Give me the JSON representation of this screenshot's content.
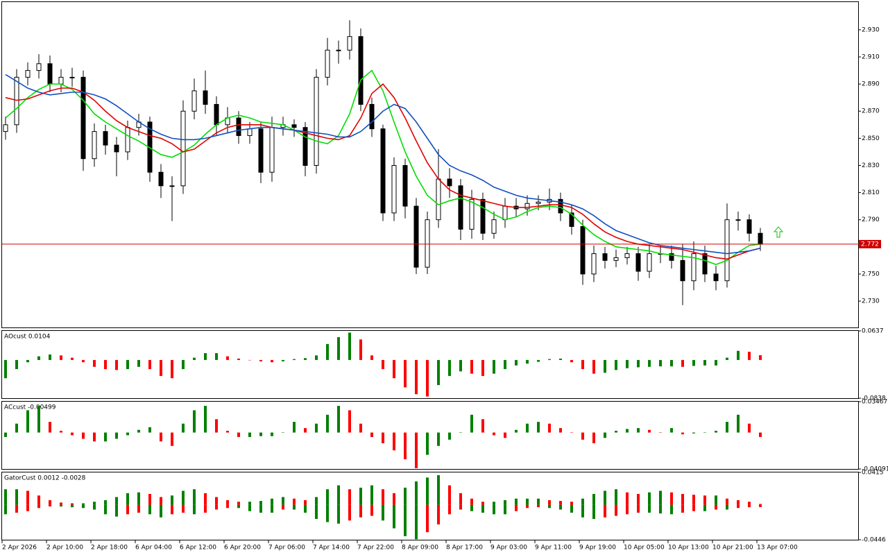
{
  "chart_data": [
    {
      "type": "candlestick",
      "open": [
        2.855,
        2.86,
        2.895,
        2.9,
        2.905,
        2.89,
        2.895,
        2.895,
        2.835,
        2.855,
        2.845,
        2.84,
        2.858,
        2.862,
        2.825,
        2.815,
        2.815,
        2.87,
        2.885,
        2.875,
        2.86,
        2.865,
        2.852,
        2.857,
        2.825,
        2.858,
        2.86,
        2.858,
        2.83,
        2.895,
        2.915,
        2.915,
        2.925,
        2.875,
        2.857,
        2.795,
        2.83,
        2.8,
        2.755,
        2.79,
        2.82,
        2.815,
        2.783,
        2.805,
        2.78,
        2.79,
        2.8,
        2.798,
        2.802,
        2.803,
        2.805,
        2.795,
        2.785,
        2.75,
        2.765,
        2.76,
        2.762,
        2.765,
        2.752,
        2.765,
        2.765,
        2.76,
        2.745,
        2.765,
        2.75,
        2.745,
        2.79,
        2.79,
        2.78
      ],
      "high": [
        2.866,
        2.901,
        2.906,
        2.912,
        2.911,
        2.901,
        2.902,
        2.9,
        2.861,
        2.86,
        2.851,
        2.863,
        2.868,
        2.866,
        2.831,
        2.822,
        2.878,
        2.894,
        2.9,
        2.881,
        2.873,
        2.87,
        2.862,
        2.862,
        2.866,
        2.866,
        2.864,
        2.862,
        2.901,
        2.924,
        2.922,
        2.937,
        2.931,
        2.88,
        2.86,
        2.836,
        2.835,
        2.806,
        2.796,
        2.842,
        2.828,
        2.82,
        2.812,
        2.81,
        2.796,
        2.806,
        2.806,
        2.808,
        2.808,
        2.813,
        2.81,
        2.801,
        2.79,
        2.771,
        2.77,
        2.768,
        2.77,
        2.77,
        2.772,
        2.771,
        2.771,
        2.772,
        2.774,
        2.771,
        2.756,
        2.802,
        2.796,
        2.794,
        2.784
      ],
      "low": [
        2.849,
        2.854,
        2.889,
        2.894,
        2.884,
        2.884,
        2.888,
        2.826,
        2.829,
        2.838,
        2.822,
        2.834,
        2.852,
        2.818,
        2.806,
        2.789,
        2.809,
        2.864,
        2.868,
        2.852,
        2.854,
        2.846,
        2.846,
        2.817,
        2.818,
        2.852,
        2.851,
        2.822,
        2.824,
        2.889,
        2.905,
        2.908,
        2.87,
        2.851,
        2.789,
        2.789,
        2.791,
        2.75,
        2.75,
        2.784,
        2.806,
        2.775,
        2.776,
        2.775,
        2.776,
        2.784,
        2.792,
        2.793,
        2.797,
        2.797,
        2.789,
        2.779,
        2.742,
        2.744,
        2.754,
        2.755,
        2.757,
        2.745,
        2.747,
        2.758,
        2.754,
        2.727,
        2.738,
        2.744,
        2.738,
        2.74,
        2.782,
        2.774,
        2.767
      ],
      "close": [
        2.86,
        2.895,
        2.9,
        2.905,
        2.89,
        2.895,
        2.895,
        2.835,
        2.855,
        2.845,
        2.84,
        2.858,
        2.862,
        2.825,
        2.815,
        2.815,
        2.87,
        2.885,
        2.875,
        2.86,
        2.865,
        2.852,
        2.857,
        2.825,
        2.858,
        2.86,
        2.858,
        2.83,
        2.895,
        2.915,
        2.915,
        2.925,
        2.875,
        2.857,
        2.795,
        2.83,
        2.8,
        2.755,
        2.79,
        2.82,
        2.815,
        2.783,
        2.805,
        2.78,
        2.79,
        2.8,
        2.798,
        2.802,
        2.803,
        2.805,
        2.795,
        2.785,
        2.75,
        2.765,
        2.76,
        2.762,
        2.765,
        2.752,
        2.765,
        2.765,
        2.76,
        2.745,
        2.765,
        2.75,
        2.745,
        2.79,
        2.79,
        2.78,
        2.772
      ],
      "up_color": "#ffffff",
      "down_color": "#000000",
      "series": [
        {
          "color": "#00dd00",
          "values": [
            2.865,
            2.872,
            2.88,
            2.886,
            2.89,
            2.89,
            2.886,
            2.878,
            2.868,
            2.862,
            2.857,
            2.852,
            2.848,
            2.843,
            2.838,
            2.836,
            2.84,
            2.845,
            2.853,
            2.86,
            2.865,
            2.867,
            2.865,
            2.862,
            2.861,
            2.86,
            2.856,
            2.851,
            2.848,
            2.846,
            2.852,
            2.868,
            2.893,
            2.9,
            2.885,
            2.862,
            2.84,
            2.822,
            2.808,
            2.801,
            2.804,
            2.806,
            2.803,
            2.799,
            2.794,
            2.79,
            2.792,
            2.796,
            2.799,
            2.8,
            2.799,
            2.794,
            2.786,
            2.779,
            2.774,
            2.77,
            2.769,
            2.768,
            2.767,
            2.765,
            2.764,
            2.763,
            2.762,
            2.76,
            2.757,
            2.76,
            2.766,
            2.771,
            2.772
          ]
        },
        {
          "color": "#e00000",
          "values": [
            2.88,
            2.878,
            2.879,
            2.882,
            2.885,
            2.887,
            2.887,
            2.884,
            2.878,
            2.87,
            2.863,
            2.858,
            2.855,
            2.852,
            2.85,
            2.846,
            2.84,
            2.842,
            2.848,
            2.854,
            2.858,
            2.86,
            2.86,
            2.86,
            2.858,
            2.857,
            2.856,
            2.854,
            2.852,
            2.85,
            2.849,
            2.852,
            2.865,
            2.883,
            2.89,
            2.88,
            2.865,
            2.848,
            2.832,
            2.82,
            2.812,
            2.808,
            2.806,
            2.804,
            2.802,
            2.8,
            2.799,
            2.799,
            2.8,
            2.801,
            2.801,
            2.799,
            2.794,
            2.787,
            2.781,
            2.777,
            2.774,
            2.772,
            2.771,
            2.77,
            2.769,
            2.768,
            2.766,
            2.764,
            2.762,
            2.761,
            2.764,
            2.767,
            2.769
          ]
        },
        {
          "color": "#1050c0",
          "values": [
            2.897,
            2.892,
            2.887,
            2.884,
            2.882,
            2.883,
            2.884,
            2.884,
            2.882,
            2.879,
            2.874,
            2.868,
            2.862,
            2.857,
            2.853,
            2.85,
            2.849,
            2.849,
            2.85,
            2.852,
            2.854,
            2.856,
            2.857,
            2.858,
            2.858,
            2.857,
            2.856,
            2.855,
            2.854,
            2.853,
            2.851,
            2.851,
            2.855,
            2.862,
            2.87,
            2.875,
            2.872,
            2.862,
            2.85,
            2.838,
            2.83,
            2.826,
            2.823,
            2.819,
            2.814,
            2.811,
            2.808,
            2.806,
            2.805,
            2.804,
            2.803,
            2.801,
            2.798,
            2.793,
            2.787,
            2.782,
            2.779,
            2.776,
            2.773,
            2.771,
            2.77,
            2.769,
            2.768,
            2.767,
            2.766,
            2.765,
            2.766,
            2.767,
            2.769
          ]
        }
      ],
      "price_line": 2.772,
      "price_color": "#d00000",
      "ylim": [
        2.7106,
        2.9504
      ],
      "yticks": [
        {
          "value": 2.93,
          "label": "2.930"
        },
        {
          "value": 2.91,
          "label": "2.910"
        },
        {
          "value": 2.89,
          "label": "2.890"
        },
        {
          "value": 2.87,
          "label": "2.870"
        },
        {
          "value": 2.85,
          "label": "2.850"
        },
        {
          "value": 2.83,
          "label": "2.830"
        },
        {
          "value": 2.81,
          "label": "2.810"
        },
        {
          "value": 2.79,
          "label": "2.790"
        },
        {
          "value": 2.75,
          "label": "2.750"
        },
        {
          "value": 2.73,
          "label": "2.730"
        }
      ]
    },
    {
      "type": "bar",
      "title": "AOcust 0.0104",
      "color_by": "change",
      "up_color": "#008000",
      "down_color": "#ff0000",
      "series": [
        {
          "values": [
            -0.04,
            -0.02,
            -0.005,
            0.008,
            0.012,
            0.01,
            0.005,
            -0.005,
            -0.015,
            -0.02,
            -0.022,
            -0.02,
            -0.015,
            -0.02,
            -0.035,
            -0.04,
            -0.02,
            0.005,
            0.015,
            0.015,
            0.008,
            0.003,
            0.0,
            -0.003,
            -0.005,
            -0.003,
            0.002,
            0.004,
            0.01,
            0.035,
            0.05,
            0.06,
            0.045,
            0.01,
            -0.02,
            -0.04,
            -0.06,
            -0.075,
            -0.08,
            -0.055,
            -0.035,
            -0.025,
            -0.03,
            -0.035,
            -0.03,
            -0.02,
            -0.012,
            -0.008,
            -0.004,
            0.002,
            0.003,
            -0.005,
            -0.02,
            -0.03,
            -0.028,
            -0.022,
            -0.018,
            -0.016,
            -0.015,
            -0.014,
            -0.014,
            -0.015,
            -0.013,
            -0.012,
            -0.012,
            0.005,
            0.02,
            0.018,
            0.0104
          ]
        }
      ],
      "ylim": [
        -0.0838,
        0.0637
      ],
      "yticks": [
        0.0637,
        -0.0838
      ]
    },
    {
      "type": "bar",
      "title": "ACcust -0.00499",
      "color_by": "change",
      "up_color": "#008000",
      "down_color": "#ff0000",
      "series": [
        {
          "values": [
            -0.005,
            0.01,
            0.025,
            0.03,
            0.012,
            0.002,
            -0.003,
            -0.007,
            -0.01,
            -0.01,
            -0.007,
            -0.003,
            0.003,
            0.006,
            -0.01,
            -0.015,
            0.01,
            0.025,
            0.03,
            0.015,
            0.002,
            -0.005,
            -0.005,
            -0.004,
            -0.004,
            0.0,
            0.012,
            0.005,
            0.01,
            0.02,
            0.03,
            0.025,
            0.01,
            -0.005,
            -0.012,
            -0.02,
            -0.03,
            -0.04,
            -0.025,
            -0.015,
            -0.008,
            0.0,
            0.02,
            0.015,
            -0.003,
            -0.006,
            0.003,
            0.01,
            0.012,
            0.01,
            0.005,
            0.0,
            -0.008,
            -0.012,
            -0.006,
            0.002,
            0.004,
            0.005,
            0.003,
            0.0,
            0.005,
            -0.002,
            -0.001,
            0.0,
            0.002,
            0.012,
            0.02,
            0.01,
            -0.00499
          ]
        }
      ],
      "ylim": [
        -0.04091,
        0.03467
      ],
      "yticks": [
        0.03467,
        -0.04091
      ]
    },
    {
      "type": "bar",
      "title": "GatorCust 0.0012 -0.0028",
      "color_by": "size_change",
      "up_color": "#008000",
      "down_color": "#ff0000",
      "series": [
        {
          "values": [
            0.02,
            0.02,
            0.018,
            0.012,
            0.006,
            0.003,
            0.002,
            0.002,
            0.004,
            0.006,
            0.01,
            0.015,
            0.016,
            0.014,
            0.01,
            0.012,
            0.018,
            0.02,
            0.015,
            0.01,
            0.006,
            0.004,
            0.004,
            0.005,
            0.008,
            0.01,
            0.008,
            0.006,
            0.01,
            0.02,
            0.025,
            0.02,
            0.022,
            0.025,
            0.02,
            0.015,
            0.022,
            0.03,
            0.035,
            0.038,
            0.025,
            0.015,
            0.008,
            0.004,
            0.004,
            0.006,
            0.008,
            0.008,
            0.008,
            0.006,
            0.005,
            0.004,
            0.008,
            0.014,
            0.018,
            0.02,
            0.016,
            0.014,
            0.016,
            0.018,
            0.016,
            0.014,
            0.013,
            0.012,
            0.012,
            0.008,
            0.006,
            0.004,
            0.0012
          ]
        },
        {
          "values": [
            -0.012,
            -0.01,
            -0.008,
            -0.004,
            -0.002,
            -0.002,
            -0.003,
            -0.004,
            -0.006,
            -0.012,
            -0.015,
            -0.012,
            -0.01,
            -0.012,
            -0.016,
            -0.012,
            -0.01,
            -0.012,
            -0.01,
            -0.006,
            -0.004,
            -0.004,
            -0.008,
            -0.01,
            -0.01,
            -0.006,
            -0.006,
            -0.01,
            -0.018,
            -0.022,
            -0.024,
            -0.02,
            -0.016,
            -0.014,
            -0.02,
            -0.03,
            -0.04,
            -0.044,
            -0.035,
            -0.025,
            -0.012,
            -0.006,
            -0.008,
            -0.01,
            -0.012,
            -0.012,
            -0.008,
            -0.004,
            -0.003,
            -0.004,
            -0.006,
            -0.01,
            -0.016,
            -0.018,
            -0.016,
            -0.014,
            -0.012,
            -0.01,
            -0.01,
            -0.011,
            -0.012,
            -0.01,
            -0.008,
            -0.008,
            -0.006,
            -0.006,
            -0.004,
            -0.003,
            -0.0028
          ]
        }
      ],
      "ylim": [
        -0.0446,
        0.0415
      ],
      "yticks": [
        0.0415,
        -0.0446
      ],
      "x_labels": [
        "2 Apr 2026",
        "2 Apr 10:00",
        "2 Apr 18:00",
        "6 Apr 04:00",
        "6 Apr 12:00",
        "6 Apr 20:00",
        "7 Apr 06:00",
        "7 Apr 14:00",
        "7 Apr 22:00",
        "8 Apr 09:00",
        "8 Apr 17:00",
        "9 Apr 03:00",
        "9 Apr 11:00",
        "9 Apr 19:00",
        "10 Apr 05:00",
        "10 Apr 13:00",
        "10 Apr 21:00",
        "13 Apr 07:00"
      ]
    }
  ]
}
